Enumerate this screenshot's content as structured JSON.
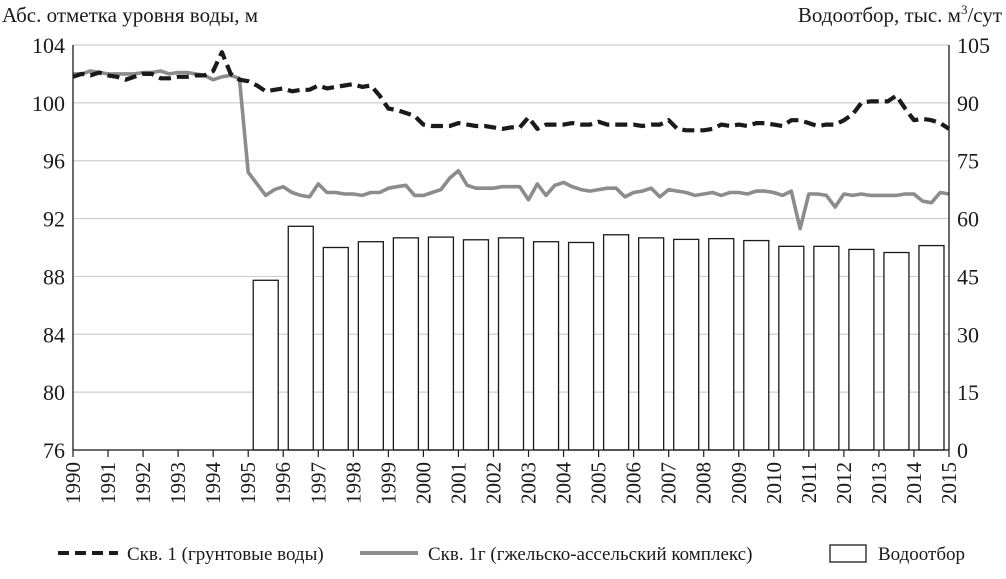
{
  "chart_data": {
    "type": "bar",
    "title": "",
    "ylabel_left": "Абс. отметка уровня воды, м",
    "ylabel_right_prefix": "Водоотбор, тыс. м",
    "ylabel_right_sup": "3",
    "ylabel_right_suffix": "/сут",
    "ylim_left": [
      76,
      104
    ],
    "ylim_right": [
      0,
      105
    ],
    "yticks_left": [
      "104",
      "100",
      "96",
      "92",
      "88",
      "84",
      "80",
      "76"
    ],
    "yticks_right": [
      "105",
      "90",
      "75",
      "60",
      "45",
      "30",
      "15",
      "0"
    ],
    "xlim": [
      1990,
      2015
    ],
    "xticks": [
      "1990",
      "1991",
      "1992",
      "1993",
      "1994",
      "1995",
      "1996",
      "1997",
      "1998",
      "1999",
      "2000",
      "2001",
      "2002",
      "2003",
      "2004",
      "2005",
      "2006",
      "2007",
      "2008",
      "2009",
      "2010",
      "2011",
      "2012",
      "2013",
      "2014",
      "2015"
    ],
    "grid": "horizontal",
    "legend_position": "bottom",
    "series": [
      {
        "name": "Скв. 1 (грунтовые воды)",
        "type": "line",
        "axis": "left",
        "style": "dashed",
        "color": "#1a1a1a",
        "x": [
          1990,
          1990.25,
          1990.5,
          1990.75,
          1991,
          1991.25,
          1991.5,
          1991.75,
          1992,
          1992.25,
          1992.5,
          1992.75,
          1993,
          1993.25,
          1993.5,
          1993.75,
          1994,
          1994.25,
          1994.5,
          1994.75,
          1995,
          1995.25,
          1995.5,
          1995.75,
          1996,
          1996.25,
          1996.5,
          1996.75,
          1997,
          1997.25,
          1997.5,
          1997.75,
          1998,
          1998.25,
          1998.5,
          1998.75,
          1999,
          1999.25,
          1999.5,
          1999.75,
          2000,
          2000.25,
          2000.5,
          2000.75,
          2001,
          2001.25,
          2001.5,
          2001.75,
          2002,
          2002.25,
          2002.5,
          2002.75,
          2003,
          2003.25,
          2003.5,
          2003.75,
          2004,
          2004.25,
          2004.5,
          2004.75,
          2005,
          2005.25,
          2005.5,
          2005.75,
          2006,
          2006.25,
          2006.5,
          2006.75,
          2007,
          2007.25,
          2007.5,
          2007.75,
          2008,
          2008.25,
          2008.5,
          2008.75,
          2009,
          2009.25,
          2009.5,
          2009.75,
          2010,
          2010.25,
          2010.5,
          2010.75,
          2011,
          2011.25,
          2011.5,
          2011.75,
          2012,
          2012.25,
          2012.5,
          2012.75,
          2013,
          2013.25,
          2013.5,
          2013.75,
          2014,
          2014.25,
          2014.5,
          2014.75,
          2015
        ],
        "y": [
          101.8,
          102,
          101.9,
          102.1,
          101.9,
          101.8,
          101.6,
          101.8,
          102,
          102,
          101.7,
          101.7,
          101.8,
          101.8,
          101.9,
          101.9,
          102.2,
          103.5,
          102,
          101.6,
          101.5,
          101.2,
          100.8,
          100.9,
          101,
          100.8,
          100.9,
          100.9,
          101.2,
          101,
          101.1,
          101.2,
          101.3,
          101.1,
          101.2,
          100.5,
          99.6,
          99.5,
          99.3,
          99.1,
          98.5,
          98.4,
          98.4,
          98.4,
          98.6,
          98.5,
          98.4,
          98.4,
          98.3,
          98.2,
          98.3,
          98.3,
          99,
          98.2,
          98.5,
          98.5,
          98.5,
          98.6,
          98.5,
          98.5,
          98.7,
          98.5,
          98.5,
          98.5,
          98.5,
          98.4,
          98.5,
          98.5,
          98.8,
          98.2,
          98.1,
          98.1,
          98.1,
          98.2,
          98.5,
          98.4,
          98.5,
          98.4,
          98.6,
          98.6,
          98.5,
          98.4,
          98.8,
          98.8,
          98.6,
          98.4,
          98.5,
          98.5,
          98.8,
          99.2,
          100,
          100.1,
          100.1,
          100.1,
          100.5,
          99.6,
          98.8,
          98.9,
          98.8,
          98.6,
          98.2
        ]
      },
      {
        "name": "Скв. 1г (гжельско-ассельский комплекс)",
        "type": "line",
        "axis": "left",
        "style": "solid",
        "color": "#8c8c8c",
        "x": [
          1990,
          1990.25,
          1990.5,
          1990.75,
          1991,
          1991.25,
          1991.5,
          1991.75,
          1992,
          1992.25,
          1992.5,
          1992.75,
          1993,
          1993.25,
          1993.5,
          1993.75,
          1994,
          1994.25,
          1994.5,
          1994.75,
          1995,
          1995.25,
          1995.5,
          1995.75,
          1996,
          1996.25,
          1996.5,
          1996.75,
          1997,
          1997.25,
          1997.5,
          1997.75,
          1998,
          1998.25,
          1998.5,
          1998.75,
          1999,
          1999.25,
          1999.5,
          1999.75,
          2000,
          2000.25,
          2000.5,
          2000.75,
          2001,
          2001.25,
          2001.5,
          2001.75,
          2002,
          2002.25,
          2002.5,
          2002.75,
          2003,
          2003.25,
          2003.5,
          2003.75,
          2004,
          2004.25,
          2004.5,
          2004.75,
          2005,
          2005.25,
          2005.5,
          2005.75,
          2006,
          2006.25,
          2006.5,
          2006.75,
          2007,
          2007.25,
          2007.5,
          2007.75,
          2008,
          2008.25,
          2008.5,
          2008.75,
          2009,
          2009.25,
          2009.5,
          2009.75,
          2010,
          2010.25,
          2010.5,
          2010.75,
          2011,
          2011.25,
          2011.5,
          2011.75,
          2012,
          2012.25,
          2012.5,
          2012.75,
          2013,
          2013.25,
          2013.5,
          2013.75,
          2014,
          2014.25,
          2014.5,
          2014.75,
          2015
        ],
        "y": [
          102,
          102,
          102.2,
          102.1,
          102,
          102,
          102,
          102,
          102.1,
          102.1,
          102.2,
          102,
          102.1,
          102.1,
          102,
          101.9,
          101.6,
          101.8,
          101.9,
          101.7,
          95.2,
          94.4,
          93.6,
          94,
          94.2,
          93.8,
          93.6,
          93.5,
          94.4,
          93.8,
          93.8,
          93.7,
          93.7,
          93.6,
          93.8,
          93.8,
          94.1,
          94.2,
          94.3,
          93.6,
          93.6,
          93.8,
          94,
          94.8,
          95.3,
          94.3,
          94.1,
          94.1,
          94.1,
          94.2,
          94.2,
          94.2,
          93.3,
          94.4,
          93.6,
          94.3,
          94.5,
          94.2,
          94,
          93.9,
          94,
          94.1,
          94.1,
          93.5,
          93.8,
          93.9,
          94.1,
          93.5,
          94,
          93.9,
          93.8,
          93.6,
          93.7,
          93.8,
          93.6,
          93.8,
          93.8,
          93.7,
          93.9,
          93.9,
          93.8,
          93.6,
          93.9,
          91.3,
          93.7,
          93.7,
          93.6,
          92.8,
          93.7,
          93.6,
          93.7,
          93.6,
          93.6,
          93.6,
          93.6,
          93.7,
          93.7,
          93.2,
          93.1,
          93.8,
          93.7
        ]
      },
      {
        "name": "Водоотбор",
        "type": "bar",
        "axis": "right",
        "color": "#ffffff",
        "stroke": "#1a1a1a",
        "x": [
          1995,
          1996,
          1997,
          1998,
          1999,
          2000,
          2001,
          2002,
          2003,
          2004,
          2005,
          2006,
          2007,
          2008,
          2009,
          2010,
          2011,
          2012,
          2013,
          2014
        ],
        "values": [
          44,
          58,
          52.5,
          54,
          55,
          55.2,
          54.5,
          55,
          54,
          53.8,
          55.8,
          55,
          54.6,
          54.8,
          54.3,
          52.8,
          52.8,
          52,
          51.2,
          53
        ]
      }
    ]
  }
}
